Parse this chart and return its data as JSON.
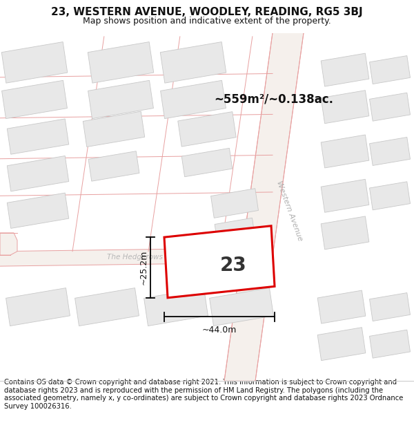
{
  "title_line1": "23, WESTERN AVENUE, WOODLEY, READING, RG5 3BJ",
  "title_line2": "Map shows position and indicative extent of the property.",
  "footer_text": "Contains OS data © Crown copyright and database right 2021. This information is subject to Crown copyright and database rights 2023 and is reproduced with the permission of HM Land Registry. The polygons (including the associated geometry, namely x, y co-ordinates) are subject to Crown copyright and database rights 2023 Ordnance Survey 100026316.",
  "bg_color": "#ffffff",
  "building_fill": "#e8e8e8",
  "building_edge": "#c8c8c8",
  "highlight_fill": "#ffffff",
  "highlight_edge": "#dd0000",
  "road_line_color": "#e8a0a0",
  "road_bg": "#f8f4f0",
  "street_label1": "Western Avenue",
  "street_label2": "The Hedgerows",
  "area_label": "~559m²/~0.138ac.",
  "number_label": "23",
  "dim_width": "~44.0m",
  "dim_height": "~25.2m",
  "title_fontsize": 11,
  "subtitle_fontsize": 9,
  "footer_fontsize": 7.2
}
